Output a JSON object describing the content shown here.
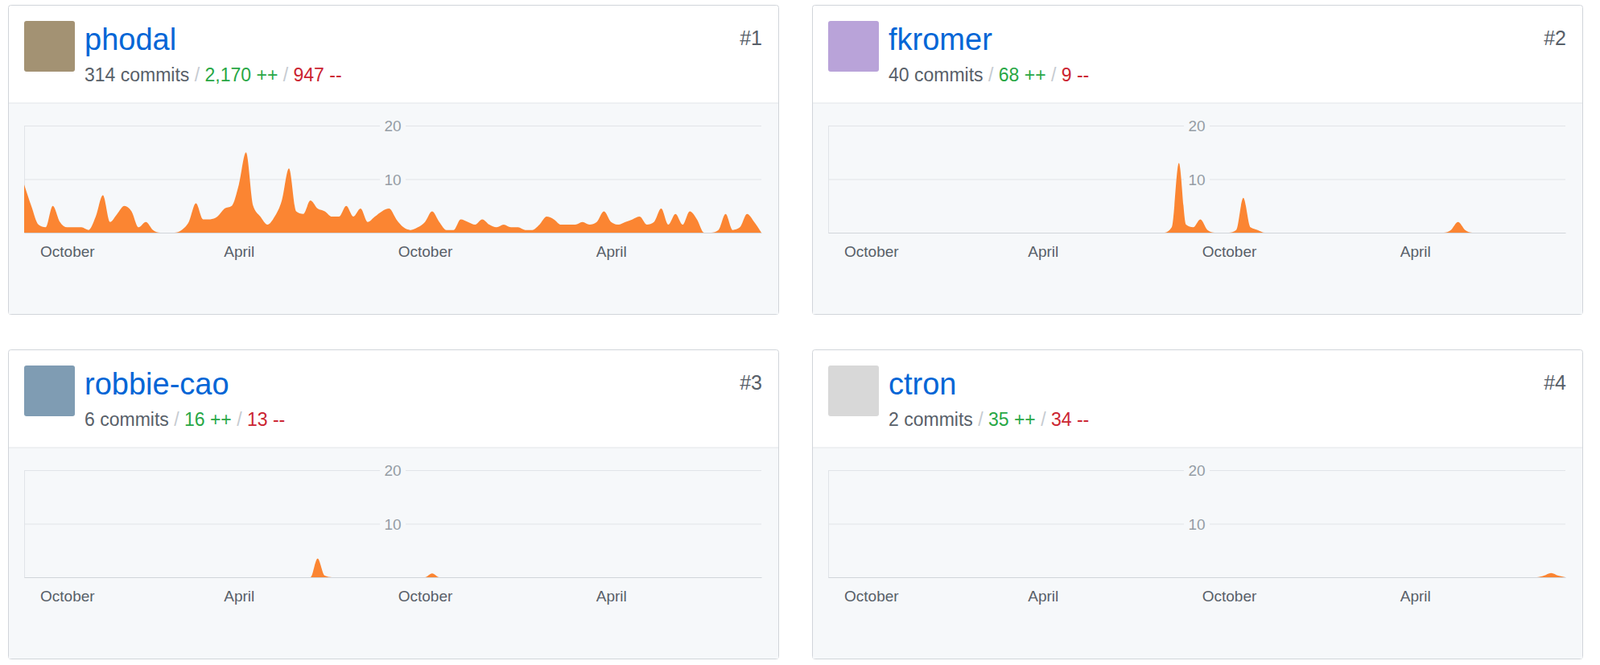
{
  "chart_data": [
    {
      "type": "area",
      "title": "phodal",
      "rank": "#1",
      "stats": [
        "314 commits",
        "2,170 ++",
        "947 --"
      ],
      "separator": "/",
      "color": "#fb8532",
      "grid": true,
      "categories": [
        null,
        null,
        null,
        null,
        null,
        null,
        "October",
        null,
        null,
        null,
        null,
        null,
        null,
        null,
        null,
        null,
        null,
        null,
        null,
        null,
        null,
        null,
        null,
        null,
        null,
        null,
        null,
        null,
        null,
        null,
        "April",
        null,
        null,
        null,
        null,
        null,
        null,
        null,
        null,
        null,
        null,
        null,
        null,
        null,
        null,
        null,
        null,
        null,
        null,
        null,
        null,
        null,
        null,
        null,
        null,
        null,
        "October",
        null,
        null,
        null,
        null,
        null,
        null,
        null,
        null,
        null,
        null,
        null,
        null,
        null,
        null,
        null,
        null,
        null,
        null,
        null,
        null,
        null,
        null,
        null,
        null,
        null,
        "April",
        null,
        null,
        null,
        null,
        null,
        null,
        null,
        null,
        null,
        null,
        null,
        null,
        null,
        null,
        null,
        null,
        null,
        null,
        null,
        null,
        null
      ],
      "values": [
        9,
        5,
        1.5,
        1,
        5,
        2,
        1,
        1,
        1,
        0.5,
        3,
        7,
        2,
        3.5,
        5,
        4,
        1,
        2,
        0.5,
        0,
        0,
        0,
        0.5,
        2,
        5.5,
        2.5,
        2.5,
        3,
        4.5,
        5,
        9,
        15,
        5,
        3,
        1.5,
        3,
        6,
        12,
        4,
        3.5,
        6,
        4.5,
        4,
        3,
        3,
        5,
        3,
        4.5,
        2,
        3,
        4,
        4.5,
        2.5,
        1,
        0.5,
        1,
        2,
        4,
        2,
        0.5,
        0.5,
        2.5,
        2,
        1.5,
        2.5,
        1.5,
        1,
        1.5,
        1,
        1,
        0.5,
        0.5,
        1.5,
        3,
        2.5,
        1.5,
        1.5,
        1.5,
        2,
        1.5,
        2,
        4,
        2,
        1.5,
        2,
        2.5,
        3,
        1.5,
        2,
        4.5,
        1.5,
        3.5,
        1.5,
        4,
        2.5,
        0,
        0,
        0.5,
        3.5,
        0.5,
        1,
        3.5,
        2,
        0
      ],
      "ylim": [
        0,
        20
      ],
      "yticks": [
        10,
        20
      ]
    },
    {
      "type": "area",
      "title": "fkromer",
      "rank": "#2",
      "stats": [
        "40 commits",
        "68 ++",
        "9 --"
      ],
      "separator": "/",
      "color": "#fb8532",
      "grid": true,
      "categories": [
        null,
        null,
        null,
        null,
        null,
        null,
        "October",
        null,
        null,
        null,
        null,
        null,
        null,
        null,
        null,
        null,
        null,
        null,
        null,
        null,
        null,
        null,
        null,
        null,
        null,
        null,
        null,
        null,
        null,
        null,
        "April",
        null,
        null,
        null,
        null,
        null,
        null,
        null,
        null,
        null,
        null,
        null,
        null,
        null,
        null,
        null,
        null,
        null,
        null,
        null,
        null,
        null,
        null,
        null,
        null,
        null,
        "October",
        null,
        null,
        null,
        null,
        null,
        null,
        null,
        null,
        null,
        null,
        null,
        null,
        null,
        null,
        null,
        null,
        null,
        null,
        null,
        null,
        null,
        null,
        null,
        null,
        null,
        "April",
        null,
        null,
        null,
        null,
        null,
        null,
        null,
        null,
        null,
        null,
        null,
        null,
        null,
        null,
        null,
        null,
        null,
        null,
        null,
        null,
        null
      ],
      "values": [
        0,
        0,
        0,
        0,
        0,
        0,
        0,
        0,
        0,
        0,
        0,
        0,
        0,
        0,
        0,
        0,
        0,
        0,
        0,
        0,
        0,
        0,
        0,
        0,
        0,
        0,
        0,
        0,
        0,
        0,
        0,
        0,
        0,
        0,
        0,
        0,
        0,
        0,
        0,
        0,
        0,
        0,
        0,
        0,
        0,
        0,
        0,
        0,
        1,
        13,
        1.5,
        1,
        2.5,
        0.5,
        0,
        0,
        0,
        0.5,
        6.5,
        1,
        0.5,
        0,
        0,
        0,
        0,
        0,
        0,
        0,
        0,
        0,
        0,
        0,
        0,
        0,
        0,
        0,
        0,
        0,
        0,
        0,
        0,
        0,
        0,
        0,
        0,
        0,
        0,
        0.5,
        2,
        0.5,
        0,
        0,
        0,
        0,
        0,
        0,
        0,
        0,
        0,
        0,
        0,
        0,
        0,
        0
      ],
      "ylim": [
        0,
        20
      ],
      "yticks": [
        10,
        20
      ]
    },
    {
      "type": "area",
      "title": "robbie-cao",
      "rank": "#3",
      "stats": [
        "6 commits",
        "16 ++",
        "13 --"
      ],
      "separator": "/",
      "color": "#fb8532",
      "grid": true,
      "categories": [
        null,
        null,
        null,
        null,
        null,
        null,
        "October",
        null,
        null,
        null,
        null,
        null,
        null,
        null,
        null,
        null,
        null,
        null,
        null,
        null,
        null,
        null,
        null,
        null,
        null,
        null,
        null,
        null,
        null,
        null,
        "April",
        null,
        null,
        null,
        null,
        null,
        null,
        null,
        null,
        null,
        null,
        null,
        null,
        null,
        null,
        null,
        null,
        null,
        null,
        null,
        null,
        null,
        null,
        null,
        null,
        null,
        "October",
        null,
        null,
        null,
        null,
        null,
        null,
        null,
        null,
        null,
        null,
        null,
        null,
        null,
        null,
        null,
        null,
        null,
        null,
        null,
        null,
        null,
        null,
        null,
        null,
        null,
        "April",
        null,
        null,
        null,
        null,
        null,
        null,
        null,
        null,
        null,
        null,
        null,
        null,
        null,
        null,
        null,
        null,
        null,
        null,
        null,
        null,
        null
      ],
      "values": [
        0,
        0,
        0,
        0,
        0,
        0,
        0,
        0,
        0,
        0,
        0,
        0,
        0,
        0,
        0,
        0,
        0,
        0,
        0,
        0,
        0,
        0,
        0,
        0,
        0,
        0,
        0,
        0,
        0,
        0,
        0,
        0,
        0,
        0,
        0,
        0,
        0,
        0,
        0,
        0,
        0,
        3.5,
        0.3,
        0,
        0,
        0,
        0,
        0,
        0,
        0,
        0,
        0,
        0,
        0,
        0,
        0,
        0,
        0.7,
        0,
        0,
        0,
        0,
        0,
        0,
        0,
        0,
        0,
        0,
        0,
        0,
        0,
        0,
        0,
        0,
        0,
        0,
        0,
        0,
        0,
        0,
        0,
        0,
        0,
        0,
        0,
        0,
        0,
        0,
        0,
        0,
        0,
        0,
        0,
        0,
        0,
        0,
        0,
        0,
        0,
        0,
        0,
        0,
        0,
        0
      ],
      "ylim": [
        0,
        20
      ],
      "yticks": [
        10,
        20
      ]
    },
    {
      "type": "area",
      "title": "ctron",
      "rank": "#4",
      "stats": [
        "2 commits",
        "35 ++",
        "34 --"
      ],
      "separator": "/",
      "color": "#fb8532",
      "grid": true,
      "categories": [
        null,
        null,
        null,
        null,
        null,
        null,
        "October",
        null,
        null,
        null,
        null,
        null,
        null,
        null,
        null,
        null,
        null,
        null,
        null,
        null,
        null,
        null,
        null,
        null,
        null,
        null,
        null,
        null,
        null,
        null,
        "April",
        null,
        null,
        null,
        null,
        null,
        null,
        null,
        null,
        null,
        null,
        null,
        null,
        null,
        null,
        null,
        null,
        null,
        null,
        null,
        null,
        null,
        null,
        null,
        null,
        null,
        "October",
        null,
        null,
        null,
        null,
        null,
        null,
        null,
        null,
        null,
        null,
        null,
        null,
        null,
        null,
        null,
        null,
        null,
        null,
        null,
        null,
        null,
        null,
        null,
        null,
        null,
        "April",
        null,
        null,
        null,
        null,
        null,
        null,
        null,
        null,
        null,
        null,
        null,
        null,
        null,
        null,
        null,
        null,
        null,
        null,
        null,
        null,
        null
      ],
      "values": [
        0,
        0,
        0,
        0,
        0,
        0,
        0,
        0,
        0,
        0,
        0,
        0,
        0,
        0,
        0,
        0,
        0,
        0,
        0,
        0,
        0,
        0,
        0,
        0,
        0,
        0,
        0,
        0,
        0,
        0,
        0,
        0,
        0,
        0,
        0,
        0,
        0,
        0,
        0,
        0,
        0,
        0,
        0,
        0,
        0,
        0,
        0,
        0,
        0,
        0,
        0,
        0,
        0,
        0,
        0,
        0,
        0,
        0,
        0,
        0,
        0,
        0,
        0,
        0,
        0,
        0,
        0,
        0,
        0,
        0,
        0,
        0,
        0,
        0,
        0,
        0,
        0,
        0,
        0,
        0,
        0,
        0,
        0,
        0,
        0,
        0,
        0,
        0,
        0,
        0,
        0,
        0,
        0,
        0,
        0,
        0,
        0,
        0,
        0,
        0,
        0.3,
        0.8,
        0.3,
        0
      ],
      "ylim": [
        0,
        20
      ],
      "yticks": [
        10,
        20
      ]
    }
  ]
}
